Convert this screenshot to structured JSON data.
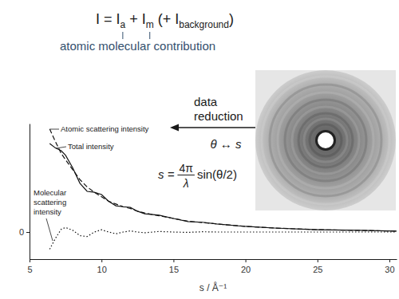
{
  "chart_data": {
    "type": "line",
    "formula": [
      "I = I",
      "a",
      " + I",
      "m",
      " (+ I",
      "background",
      ")"
    ],
    "formula_caption": "atomic molecular contribution",
    "arrow_label": "data reduction",
    "conversion": "θ ↔ s",
    "s_formula": [
      "s =",
      "4π",
      "λ",
      "sin(θ/2)"
    ],
    "x_label": "s / Å⁻¹",
    "x": [
      6.4,
      6.8,
      7.2,
      7.5,
      8,
      8.5,
      9,
      9.5,
      10,
      10.5,
      11,
      11.5,
      12,
      12.5,
      13,
      14,
      15,
      16,
      17,
      18,
      20,
      22,
      25,
      28,
      30.5
    ],
    "series": [
      {
        "name": "Atomic scattering intensity",
        "color": "#111111",
        "line_style": "dashed",
        "values": [
          1.14,
          1.0,
          0.87,
          0.8,
          0.69,
          0.58,
          0.5,
          0.44,
          0.39,
          0.34,
          0.31,
          0.28,
          0.26,
          0.23,
          0.21,
          0.18,
          0.15,
          0.12,
          0.105,
          0.09,
          0.062,
          0.044,
          0.026,
          0.018,
          0.01
        ]
      },
      {
        "name": "Total intensity",
        "color": "#111111",
        "line_style": "solid",
        "values": [
          0.98,
          0.93,
          0.9,
          0.85,
          0.71,
          0.54,
          0.45,
          0.44,
          0.415,
          0.34,
          0.29,
          0.28,
          0.272,
          0.23,
          0.202,
          0.186,
          0.15,
          0.116,
          0.108,
          0.09,
          0.062,
          0.044,
          0.026,
          0.018,
          0.01
        ]
      },
      {
        "name": "Molecular scattering intensity",
        "color": "#111111",
        "line_style": "dotted",
        "values": [
          -0.19,
          -0.07,
          0.03,
          0.05,
          0.02,
          -0.04,
          -0.05,
          0.0,
          0.025,
          0.0,
          -0.02,
          0.0,
          0.012,
          0.0,
          -0.008,
          0.006,
          0.0,
          -0.004,
          0.003,
          0.0,
          0.0,
          0.0,
          0.0,
          0.0,
          0.0
        ]
      }
    ],
    "xlim": [
      5,
      30.5
    ],
    "xticks": [
      5,
      10,
      15,
      20,
      25,
      30
    ],
    "ylim": [
      -0.3,
      1.2
    ],
    "yticks": [
      0
    ],
    "grid": false
  }
}
